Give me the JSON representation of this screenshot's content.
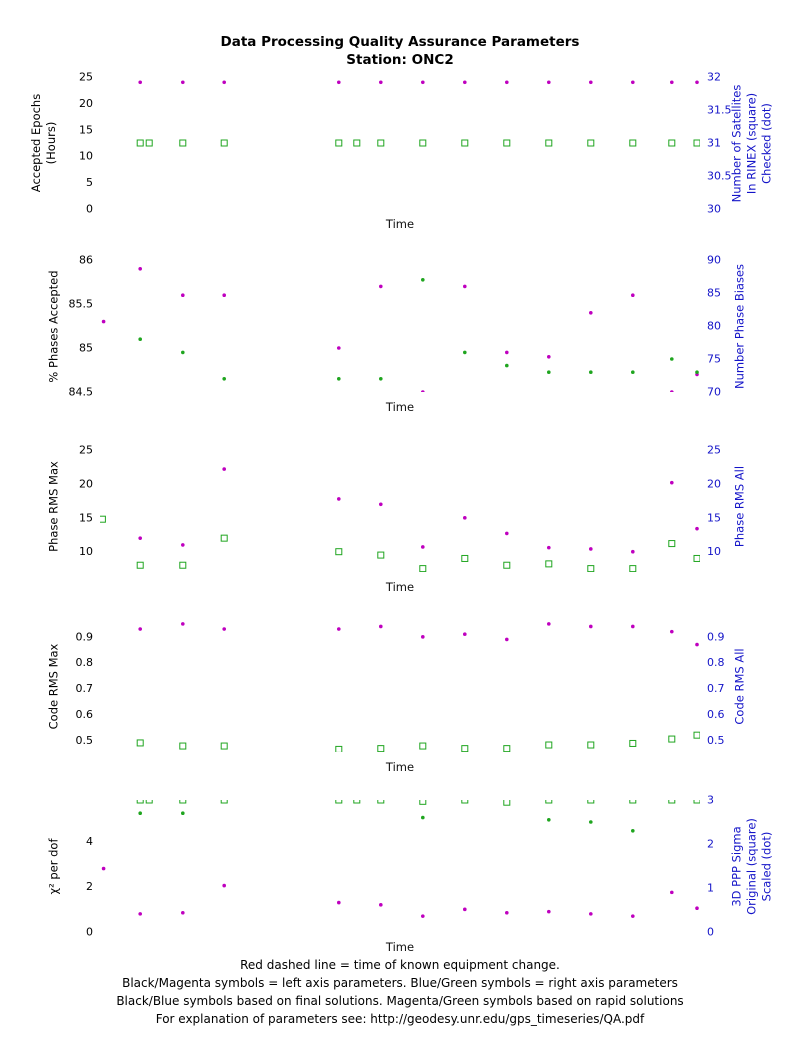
{
  "title": {
    "line1": "Data Processing Quality Assurance Parameters",
    "line2": "Station: ONC2"
  },
  "footer": {
    "lines": [
      "Red dashed line = time of known equipment change.",
      "Black/Magenta symbols = left axis parameters. Blue/Green symbols = right axis parameters",
      "Black/Blue symbols based on final solutions.  Magenta/Green symbols based on rapid solutions",
      "For explanation of parameters see: http://geodesy.unr.edu/gps_timeseries/QA.pdf"
    ]
  },
  "colors": {
    "magenta": "#bf00bf",
    "green": "#1fa51f",
    "right_axis": "#1414c8",
    "left_axis": "#000000"
  },
  "chart_data": [
    {
      "id": "accepted-epochs",
      "type": "scatter",
      "xlabel": "Time",
      "left_label": "Accepted Epochs\n(Hours)",
      "right_label": "Number of Satellites\nIn RINEX (square)\nChecked (dot)",
      "left_range": [
        0,
        25
      ],
      "left_ticks": [
        0,
        5,
        10,
        15,
        20,
        25
      ],
      "right_range": [
        30,
        32
      ],
      "right_ticks": [
        30,
        30.5,
        31,
        31.5,
        32
      ],
      "series": [
        {
          "name": "accepted-epochs-rapid",
          "axis": "left",
          "marker": "dot",
          "color": "magenta",
          "x": [
            0.067,
            0.138,
            0.207,
            0.398,
            0.468,
            0.538,
            0.608,
            0.678,
            0.748,
            0.818,
            0.888,
            0.953,
            0.995
          ],
          "y": [
            24,
            24,
            24,
            24,
            24,
            24,
            24,
            24,
            24,
            24,
            24,
            24,
            24
          ]
        },
        {
          "name": "satellites-in-rinex-rapid",
          "axis": "right",
          "marker": "square",
          "color": "green",
          "x": [
            0.067,
            0.082,
            0.138,
            0.207,
            0.398,
            0.428,
            0.468,
            0.538,
            0.608,
            0.678,
            0.748,
            0.818,
            0.888,
            0.953,
            0.995
          ],
          "y": [
            31,
            31,
            31,
            31,
            31,
            31,
            31,
            31,
            31,
            31,
            31,
            31,
            31,
            31,
            31
          ]
        }
      ]
    },
    {
      "id": "phases-accepted",
      "type": "scatter",
      "xlabel": "Time",
      "left_label": "% Phases Accepted",
      "right_label": "Number Phase Biases",
      "left_range": [
        84.5,
        86
      ],
      "left_ticks": [
        84.5,
        85,
        85.5,
        86
      ],
      "right_range": [
        70,
        90
      ],
      "right_ticks": [
        70,
        75,
        80,
        85,
        90
      ],
      "series": [
        {
          "name": "percent-phases-accepted-rapid",
          "axis": "left",
          "marker": "dot",
          "color": "magenta",
          "x": [
            0.006,
            0.067,
            0.138,
            0.207,
            0.398,
            0.468,
            0.538,
            0.608,
            0.678,
            0.748,
            0.818,
            0.888,
            0.953,
            0.995
          ],
          "y": [
            85.3,
            85.9,
            85.6,
            85.6,
            85.0,
            85.7,
            84.5,
            85.7,
            84.95,
            84.9,
            85.4,
            85.6,
            84.5,
            84.7
          ]
        },
        {
          "name": "number-phase-biases-rapid",
          "axis": "right",
          "marker": "dot",
          "color": "green",
          "x": [
            0.067,
            0.138,
            0.207,
            0.398,
            0.468,
            0.538,
            0.608,
            0.678,
            0.748,
            0.818,
            0.888,
            0.953,
            0.995
          ],
          "y": [
            78,
            76,
            72,
            72,
            72,
            87,
            76,
            74,
            73,
            73,
            73,
            75,
            73
          ]
        }
      ]
    },
    {
      "id": "phase-rms",
      "type": "scatter",
      "xlabel": "Time",
      "left_label": "Phase RMS Max",
      "right_label": "Phase RMS All",
      "left_range": [
        7,
        26.5
      ],
      "left_ticks": [
        10,
        15,
        20,
        25
      ],
      "right_range": [
        7,
        26.5
      ],
      "right_ticks": [
        10,
        15,
        20,
        25
      ],
      "series": [
        {
          "name": "phase-rms-max-rapid",
          "axis": "left",
          "marker": "dot",
          "color": "magenta",
          "x": [
            0.067,
            0.138,
            0.207,
            0.398,
            0.468,
            0.538,
            0.608,
            0.678,
            0.748,
            0.818,
            0.888,
            0.953,
            0.995
          ],
          "y": [
            12,
            11,
            22.2,
            17.8,
            17,
            10.7,
            15,
            12.7,
            10.6,
            10.4,
            10,
            20.2,
            13.4
          ]
        },
        {
          "name": "phase-rms-all-rapid",
          "axis": "right",
          "marker": "square",
          "color": "green",
          "x": [
            0.004,
            0.067,
            0.138,
            0.207,
            0.398,
            0.468,
            0.538,
            0.608,
            0.678,
            0.748,
            0.818,
            0.888,
            0.953,
            0.995
          ],
          "y": [
            14.8,
            8,
            8,
            12,
            10,
            9.5,
            7.5,
            9,
            8,
            8.2,
            7.5,
            7.5,
            11.2,
            9
          ]
        }
      ]
    },
    {
      "id": "code-rms",
      "type": "scatter",
      "xlabel": "Time",
      "left_label": "Code RMS Max",
      "right_label": "Code RMS All",
      "left_range": [
        0.455,
        0.965
      ],
      "left_ticks": [
        0.5,
        0.6,
        0.7,
        0.8,
        0.9
      ],
      "right_range": [
        0.455,
        0.965
      ],
      "right_ticks": [
        0.5,
        0.6,
        0.7,
        0.8,
        0.9
      ],
      "series": [
        {
          "name": "code-rms-max-rapid",
          "axis": "left",
          "marker": "dot",
          "color": "magenta",
          "x": [
            0.067,
            0.138,
            0.207,
            0.398,
            0.468,
            0.538,
            0.608,
            0.678,
            0.748,
            0.818,
            0.888,
            0.953,
            0.995
          ],
          "y": [
            0.93,
            0.95,
            0.93,
            0.93,
            0.94,
            0.9,
            0.91,
            0.89,
            0.95,
            0.94,
            0.94,
            0.92,
            0.87
          ]
        },
        {
          "name": "code-rms-all-rapid",
          "axis": "right",
          "marker": "square",
          "color": "green",
          "x": [
            0.067,
            0.138,
            0.207,
            0.398,
            0.468,
            0.538,
            0.608,
            0.678,
            0.748,
            0.818,
            0.888,
            0.953,
            0.995
          ],
          "y": [
            0.49,
            0.478,
            0.478,
            0.465,
            0.468,
            0.478,
            0.468,
            0.468,
            0.482,
            0.482,
            0.488,
            0.505,
            0.52
          ]
        }
      ]
    },
    {
      "id": "chi2-per-dof",
      "type": "scatter",
      "xlabel": "Time",
      "left_label": "χ² per dof",
      "right_label": "3D PPP Sigma\nOriginal (square)\nScaled (dot)",
      "left_range": [
        0,
        5.83
      ],
      "left_ticks": [
        0,
        2,
        4
      ],
      "right_range": [
        0,
        3
      ],
      "right_ticks": [
        0,
        1,
        2,
        3
      ],
      "series": [
        {
          "name": "chi2-per-dof-rapid",
          "axis": "left",
          "marker": "dot",
          "color": "magenta",
          "x": [
            0.006,
            0.067,
            0.138,
            0.207,
            0.398,
            0.468,
            0.538,
            0.608,
            0.678,
            0.748,
            0.818,
            0.888,
            0.953,
            0.995
          ],
          "y": [
            2.8,
            0.8,
            0.85,
            2.05,
            1.3,
            1.2,
            0.7,
            1.0,
            0.85,
            0.9,
            0.8,
            0.7,
            1.75,
            1.05
          ]
        },
        {
          "name": "ppp-sigma-original-rapid",
          "axis": "right",
          "marker": "square",
          "color": "green",
          "x": [
            0.067,
            0.082,
            0.138,
            0.207,
            0.398,
            0.428,
            0.468,
            0.538,
            0.608,
            0.678,
            0.748,
            0.818,
            0.888,
            0.953,
            0.995
          ],
          "y": [
            3,
            3,
            3,
            3,
            3,
            3,
            3,
            2.97,
            3,
            2.95,
            3,
            3,
            3,
            3,
            3
          ]
        },
        {
          "name": "ppp-sigma-scaled-rapid",
          "axis": "right",
          "marker": "dot",
          "color": "green",
          "x": [
            0.067,
            0.138,
            0.538,
            0.748,
            0.818,
            0.888
          ],
          "y": [
            2.7,
            2.7,
            2.6,
            2.55,
            2.5,
            2.3
          ]
        }
      ]
    }
  ]
}
